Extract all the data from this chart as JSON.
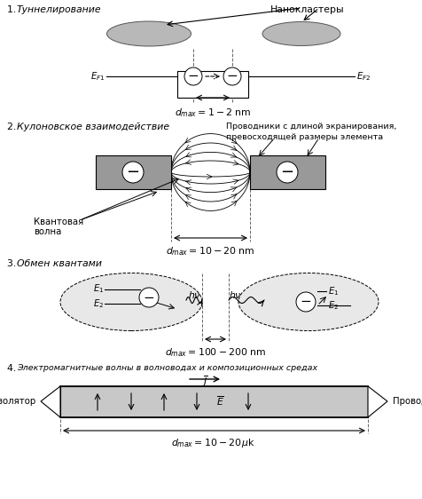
{
  "bg_color": "#ffffff",
  "gray_ellipse": "#b8b8b8",
  "gray_rect": "#999999",
  "gray_light": "#c8c8c8",
  "dashed_color": "#666666",
  "text_color": "#000000",
  "section1_label": "1. ",
  "section1_text": "Туннелирование",
  "nanoclusters_text": "Нанокластеры",
  "section2_label": "2. ",
  "section2_text": "Кулоновское взаимодействие",
  "section2_note1": "Проводники с длиной экранирования,",
  "section2_note2": "превосходящей размеры элемента",
  "kv_volna1": "Квантовая",
  "kv_volna2": "волна",
  "section3_label": "3. ",
  "section3_text": "Обмен квантами",
  "section4_label": "4. ",
  "section4_text": "Электромагнитные волны в волноводах и композиционных средах",
  "izolator": "Изолятор",
  "provodnik": "Проводник",
  "dmax1": "$d_{max} = 1-2$ nm",
  "dmax2": "$d_{max} = 10-20$ nm",
  "dmax3": "$d_{max} = 100-200$ nm",
  "dmax4": "$d_{max} = 10-20\\,\\mu$k"
}
